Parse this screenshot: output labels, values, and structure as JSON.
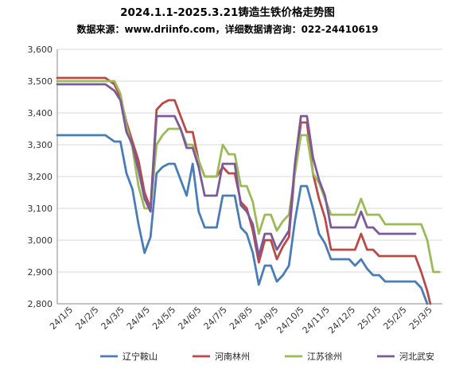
{
  "chart_data": {
    "type": "line",
    "title": "2024.1.1-2025.3.21铸造生铁价格走势图",
    "subtitle": "数据来源：www.driinfo.com，详细数据请咨询：022-24410619",
    "xlabel": "",
    "ylabel": "",
    "ylim": [
      2800,
      3600
    ],
    "yticks": [
      2800,
      2900,
      3000,
      3100,
      3200,
      3300,
      3400,
      3500,
      3600
    ],
    "ytick_labels": [
      "2,800",
      "2,900",
      "3,000",
      "3,100",
      "3,200",
      "3,300",
      "3,400",
      "3,500",
      "3,600"
    ],
    "grid": true,
    "legend_position": "bottom",
    "categories": [
      "24/1/5",
      "24/2/5",
      "24/3/5",
      "24/4/5",
      "24/5/5",
      "24/6/5",
      "24/7/5",
      "24/8/5",
      "24/9/5",
      "24/10/5",
      "24/11/5",
      "24/12/5",
      "25/1/5",
      "25/2/5",
      "25/3/5"
    ],
    "series": [
      {
        "name": "辽宁鞍山",
        "color": "#4a7db5",
        "points": [
          [
            0,
            3330
          ],
          [
            4,
            3330
          ],
          [
            8,
            3330
          ],
          [
            12,
            3330
          ],
          [
            16,
            3330
          ],
          [
            19,
            3310
          ],
          [
            21,
            3310
          ],
          [
            23,
            3210
          ],
          [
            25,
            3160
          ],
          [
            27,
            3050
          ],
          [
            29,
            2960
          ],
          [
            31,
            3010
          ],
          [
            33,
            3210
          ],
          [
            35,
            3230
          ],
          [
            37,
            3240
          ],
          [
            39,
            3240
          ],
          [
            41,
            3190
          ],
          [
            43,
            3140
          ],
          [
            45,
            3240
          ],
          [
            47,
            3090
          ],
          [
            49,
            3040
          ],
          [
            51,
            3040
          ],
          [
            53,
            3040
          ],
          [
            55,
            3140
          ],
          [
            57,
            3140
          ],
          [
            59,
            3140
          ],
          [
            61,
            3040
          ],
          [
            63,
            3020
          ],
          [
            65,
            2960
          ],
          [
            67,
            2860
          ],
          [
            69,
            2920
          ],
          [
            71,
            2920
          ],
          [
            73,
            2870
          ],
          [
            75,
            2890
          ],
          [
            77,
            2920
          ],
          [
            79,
            3060
          ],
          [
            81,
            3170
          ],
          [
            83,
            3170
          ],
          [
            85,
            3100
          ],
          [
            87,
            3020
          ],
          [
            89,
            2990
          ],
          [
            91,
            2940
          ],
          [
            93,
            2940
          ],
          [
            95,
            2940
          ],
          [
            97,
            2940
          ],
          [
            99,
            2920
          ],
          [
            101,
            2940
          ],
          [
            103,
            2910
          ],
          [
            105,
            2890
          ],
          [
            107,
            2890
          ],
          [
            109,
            2870
          ],
          [
            111,
            2870
          ],
          [
            113,
            2870
          ],
          [
            115,
            2870
          ],
          [
            117,
            2870
          ],
          [
            119,
            2870
          ],
          [
            121,
            2850
          ],
          [
            123,
            2800
          ]
        ]
      },
      {
        "name": "河南林州",
        "color": "#b84a48",
        "points": [
          [
            0,
            3510
          ],
          [
            4,
            3510
          ],
          [
            8,
            3510
          ],
          [
            12,
            3510
          ],
          [
            16,
            3510
          ],
          [
            19,
            3490
          ],
          [
            21,
            3450
          ],
          [
            23,
            3370
          ],
          [
            25,
            3310
          ],
          [
            27,
            3250
          ],
          [
            29,
            3150
          ],
          [
            31,
            3100
          ],
          [
            33,
            3410
          ],
          [
            35,
            3430
          ],
          [
            37,
            3440
          ],
          [
            39,
            3440
          ],
          [
            41,
            3390
          ],
          [
            43,
            3340
          ],
          [
            45,
            3340
          ],
          [
            47,
            3250
          ],
          [
            49,
            3200
          ],
          [
            51,
            3200
          ],
          [
            53,
            3200
          ],
          [
            55,
            3230
          ],
          [
            57,
            3210
          ],
          [
            59,
            3210
          ],
          [
            61,
            3120
          ],
          [
            63,
            3100
          ],
          [
            65,
            3030
          ],
          [
            67,
            2930
          ],
          [
            69,
            3000
          ],
          [
            71,
            3000
          ],
          [
            73,
            2940
          ],
          [
            75,
            2980
          ],
          [
            77,
            3010
          ],
          [
            79,
            3220
          ],
          [
            81,
            3370
          ],
          [
            83,
            3370
          ],
          [
            85,
            3210
          ],
          [
            87,
            3130
          ],
          [
            89,
            3070
          ],
          [
            91,
            2970
          ],
          [
            93,
            2970
          ],
          [
            95,
            2970
          ],
          [
            97,
            2970
          ],
          [
            99,
            2970
          ],
          [
            101,
            3020
          ],
          [
            103,
            2970
          ],
          [
            105,
            2970
          ],
          [
            107,
            2950
          ],
          [
            109,
            2950
          ],
          [
            111,
            2950
          ],
          [
            113,
            2950
          ],
          [
            115,
            2950
          ],
          [
            117,
            2950
          ],
          [
            119,
            2950
          ],
          [
            121,
            2900
          ],
          [
            123,
            2840
          ],
          [
            124,
            2800
          ]
        ]
      },
      {
        "name": "江苏徐州",
        "color": "#9bbb59",
        "points": [
          [
            0,
            3500
          ],
          [
            4,
            3500
          ],
          [
            8,
            3500
          ],
          [
            12,
            3500
          ],
          [
            16,
            3500
          ],
          [
            19,
            3500
          ],
          [
            21,
            3460
          ],
          [
            23,
            3360
          ],
          [
            25,
            3290
          ],
          [
            27,
            3170
          ],
          [
            29,
            3100
          ],
          [
            31,
            3100
          ],
          [
            33,
            3300
          ],
          [
            35,
            3330
          ],
          [
            37,
            3350
          ],
          [
            39,
            3350
          ],
          [
            41,
            3350
          ],
          [
            43,
            3300
          ],
          [
            45,
            3300
          ],
          [
            47,
            3250
          ],
          [
            49,
            3200
          ],
          [
            51,
            3200
          ],
          [
            53,
            3200
          ],
          [
            55,
            3300
          ],
          [
            57,
            3270
          ],
          [
            59,
            3270
          ],
          [
            61,
            3170
          ],
          [
            63,
            3170
          ],
          [
            65,
            3120
          ],
          [
            67,
            3020
          ],
          [
            69,
            3080
          ],
          [
            71,
            3080
          ],
          [
            73,
            3030
          ],
          [
            75,
            3060
          ],
          [
            77,
            3080
          ],
          [
            79,
            3210
          ],
          [
            81,
            3330
          ],
          [
            83,
            3330
          ],
          [
            85,
            3210
          ],
          [
            87,
            3180
          ],
          [
            89,
            3130
          ],
          [
            91,
            3080
          ],
          [
            93,
            3080
          ],
          [
            95,
            3080
          ],
          [
            97,
            3080
          ],
          [
            99,
            3080
          ],
          [
            101,
            3130
          ],
          [
            103,
            3080
          ],
          [
            105,
            3080
          ],
          [
            107,
            3080
          ],
          [
            109,
            3050
          ],
          [
            111,
            3050
          ],
          [
            113,
            3050
          ],
          [
            115,
            3050
          ],
          [
            117,
            3050
          ],
          [
            119,
            3050
          ],
          [
            121,
            3050
          ],
          [
            123,
            3000
          ],
          [
            125,
            2900
          ],
          [
            127,
            2900
          ]
        ]
      },
      {
        "name": "河北武安",
        "color": "#7b5a98",
        "points": [
          [
            0,
            3490
          ],
          [
            4,
            3490
          ],
          [
            8,
            3490
          ],
          [
            12,
            3490
          ],
          [
            16,
            3490
          ],
          [
            19,
            3470
          ],
          [
            21,
            3440
          ],
          [
            23,
            3340
          ],
          [
            25,
            3300
          ],
          [
            27,
            3220
          ],
          [
            29,
            3130
          ],
          [
            31,
            3090
          ],
          [
            33,
            3390
          ],
          [
            35,
            3390
          ],
          [
            37,
            3390
          ],
          [
            39,
            3390
          ],
          [
            41,
            3350
          ],
          [
            43,
            3290
          ],
          [
            45,
            3290
          ],
          [
            47,
            3230
          ],
          [
            49,
            3140
          ],
          [
            51,
            3140
          ],
          [
            53,
            3140
          ],
          [
            55,
            3240
          ],
          [
            57,
            3240
          ],
          [
            59,
            3240
          ],
          [
            61,
            3110
          ],
          [
            63,
            3090
          ],
          [
            65,
            3050
          ],
          [
            67,
            2950
          ],
          [
            69,
            3020
          ],
          [
            71,
            3020
          ],
          [
            73,
            2970
          ],
          [
            75,
            3000
          ],
          [
            77,
            3030
          ],
          [
            79,
            3240
          ],
          [
            81,
            3390
          ],
          [
            83,
            3390
          ],
          [
            85,
            3260
          ],
          [
            87,
            3190
          ],
          [
            89,
            3140
          ],
          [
            91,
            3040
          ],
          [
            93,
            3040
          ],
          [
            95,
            3040
          ],
          [
            97,
            3040
          ],
          [
            99,
            3040
          ],
          [
            101,
            3090
          ],
          [
            103,
            3040
          ],
          [
            105,
            3040
          ],
          [
            107,
            3020
          ],
          [
            109,
            3020
          ],
          [
            111,
            3020
          ],
          [
            113,
            3020
          ],
          [
            115,
            3020
          ],
          [
            117,
            3020
          ],
          [
            119,
            3020
          ]
        ]
      }
    ]
  }
}
